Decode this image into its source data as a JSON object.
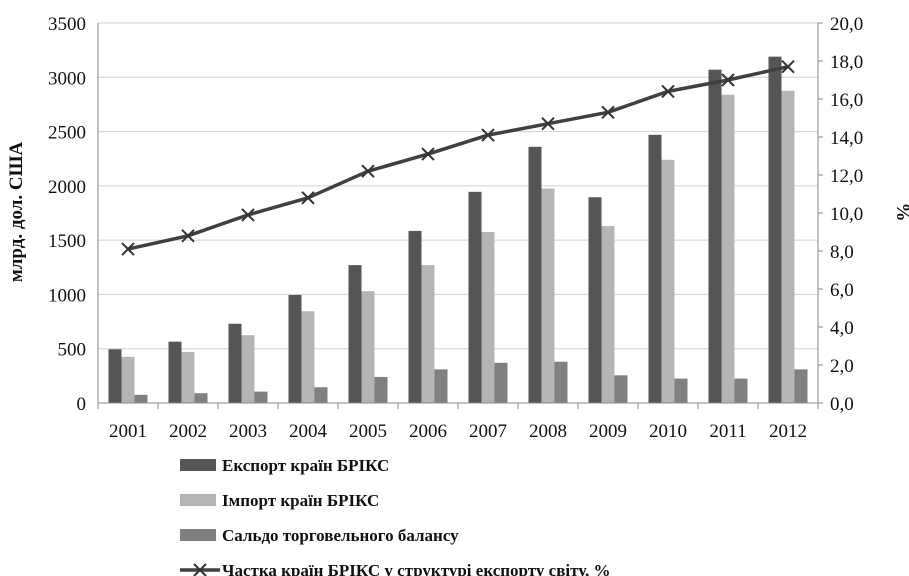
{
  "chart_data": {
    "type": "bar",
    "categories": [
      "2001",
      "2002",
      "2003",
      "2004",
      "2005",
      "2006",
      "2007",
      "2008",
      "2009",
      "2010",
      "2011",
      "2012"
    ],
    "series": [
      {
        "name": "Експорт країн БРІКС",
        "type": "bar",
        "axis": "left",
        "color": "#555555",
        "values": [
          495,
          565,
          730,
          995,
          1270,
          1585,
          1945,
          2360,
          1895,
          2470,
          3070,
          3190
        ]
      },
      {
        "name": "Імпорт країн БРІКС",
        "type": "bar",
        "axis": "left",
        "color": "#b5b5b5",
        "values": [
          425,
          470,
          625,
          845,
          1030,
          1270,
          1575,
          1975,
          1630,
          2240,
          2840,
          2875
        ]
      },
      {
        "name": "Сальдо торговельного балансу",
        "type": "bar",
        "axis": "left",
        "color": "#808080",
        "values": [
          75,
          90,
          105,
          145,
          240,
          310,
          370,
          380,
          255,
          225,
          225,
          310
        ]
      },
      {
        "name": "Частка країн БРІКС у структурі експорту світу, %",
        "type": "line",
        "axis": "right",
        "color": "#404040",
        "marker": "x",
        "values": [
          8.1,
          8.8,
          9.9,
          10.8,
          12.2,
          13.1,
          14.1,
          14.7,
          15.3,
          16.4,
          17.0,
          17.7
        ]
      }
    ],
    "ylabel": "млрд. дол. США",
    "y2label": "%",
    "ylim": [
      0,
      3500
    ],
    "y2lim": [
      0,
      20
    ],
    "yticks": [
      "0",
      "500",
      "1000",
      "1500",
      "2000",
      "2500",
      "3000",
      "3500"
    ],
    "y2ticks": [
      "0,0",
      "2,0",
      "4,0",
      "6,0",
      "8,0",
      "10,0",
      "12,0",
      "14,0",
      "16,0",
      "18,0",
      "20,0"
    ],
    "grid": "horizontal",
    "legend": "bottom"
  }
}
